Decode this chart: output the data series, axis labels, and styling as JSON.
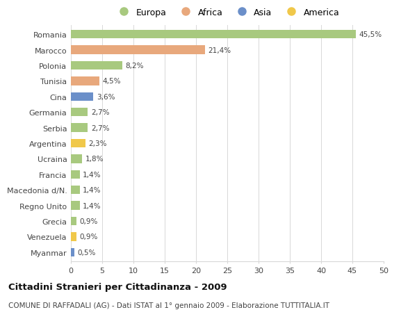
{
  "categories": [
    "Romania",
    "Marocco",
    "Polonia",
    "Tunisia",
    "Cina",
    "Germania",
    "Serbia",
    "Argentina",
    "Ucraina",
    "Francia",
    "Macedonia d/N.",
    "Regno Unito",
    "Grecia",
    "Venezuela",
    "Myanmar"
  ],
  "values": [
    45.5,
    21.4,
    8.2,
    4.5,
    3.6,
    2.7,
    2.7,
    2.3,
    1.8,
    1.4,
    1.4,
    1.4,
    0.9,
    0.9,
    0.5
  ],
  "labels": [
    "45,5%",
    "21,4%",
    "8,2%",
    "4,5%",
    "3,6%",
    "2,7%",
    "2,7%",
    "2,3%",
    "1,8%",
    "1,4%",
    "1,4%",
    "1,4%",
    "0,9%",
    "0,9%",
    "0,5%"
  ],
  "continents": [
    "Europa",
    "Africa",
    "Europa",
    "Africa",
    "Asia",
    "Europa",
    "Europa",
    "America",
    "Europa",
    "Europa",
    "Europa",
    "Europa",
    "Europa",
    "America",
    "Asia"
  ],
  "continent_colors": {
    "Europa": "#a8c97f",
    "Africa": "#e8a87c",
    "Asia": "#6b8fc9",
    "America": "#f0c84a"
  },
  "legend_order": [
    "Europa",
    "Africa",
    "Asia",
    "America"
  ],
  "xlim": [
    0,
    50
  ],
  "xticks": [
    0,
    5,
    10,
    15,
    20,
    25,
    30,
    35,
    40,
    45,
    50
  ],
  "title": "Cittadini Stranieri per Cittadinanza - 2009",
  "subtitle": "COMUNE DI RAFFADALI (AG) - Dati ISTAT al 1° gennaio 2009 - Elaborazione TUTTITALIA.IT",
  "bg_color": "#ffffff",
  "grid_color": "#d8d8d8",
  "bar_height": 0.55,
  "label_fontsize": 7.5,
  "ytick_fontsize": 8.0,
  "xtick_fontsize": 8.0,
  "title_fontsize": 9.5,
  "subtitle_fontsize": 7.5
}
